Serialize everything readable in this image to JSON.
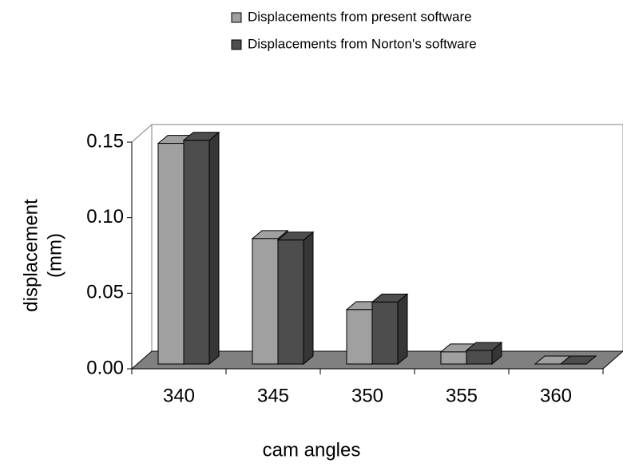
{
  "chart_data": {
    "type": "bar3d",
    "x_label": "cam angles",
    "y_label": [
      "displacement",
      "(mm)"
    ],
    "categories": [
      "340",
      "345",
      "350",
      "355",
      "360"
    ],
    "series": [
      {
        "name": "Displacements from present software",
        "color": "#a0a0a0",
        "values": [
          0.146,
          0.083,
          0.036,
          0.008,
          0
        ]
      },
      {
        "name": "Displacements from Norton's software",
        "color": "#4d4d4d",
        "values": [
          0.148,
          0.082,
          0.041,
          0.009,
          0
        ]
      }
    ],
    "ylim": [
      0,
      0.15
    ],
    "yticks": [
      {
        "value": 0,
        "label": "0.00"
      },
      0.05,
      {
        "value": 0.1,
        "label": "0.10"
      },
      0.15
    ],
    "legend": "top"
  }
}
